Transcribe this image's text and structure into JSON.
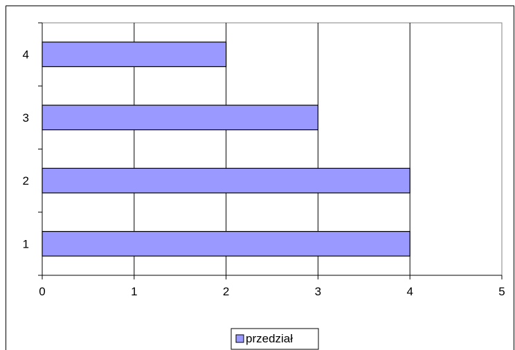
{
  "chart_data": {
    "type": "bar",
    "orientation": "horizontal",
    "categories": [
      "1",
      "2",
      "3",
      "4"
    ],
    "series": [
      {
        "name": "przedział",
        "values": [
          4,
          4,
          3,
          2
        ]
      }
    ],
    "x_ticks": [
      "0",
      "1",
      "2",
      "3",
      "4",
      "5"
    ],
    "xlim": [
      0,
      5
    ],
    "grid": "vertical",
    "legend": "bottom-center",
    "colors": {
      "bar_fill": "#9999ff",
      "bar_stroke": "#000000",
      "plot_bg": "#ffffff",
      "plot_border": "#808080",
      "gridline": "#000000"
    }
  }
}
